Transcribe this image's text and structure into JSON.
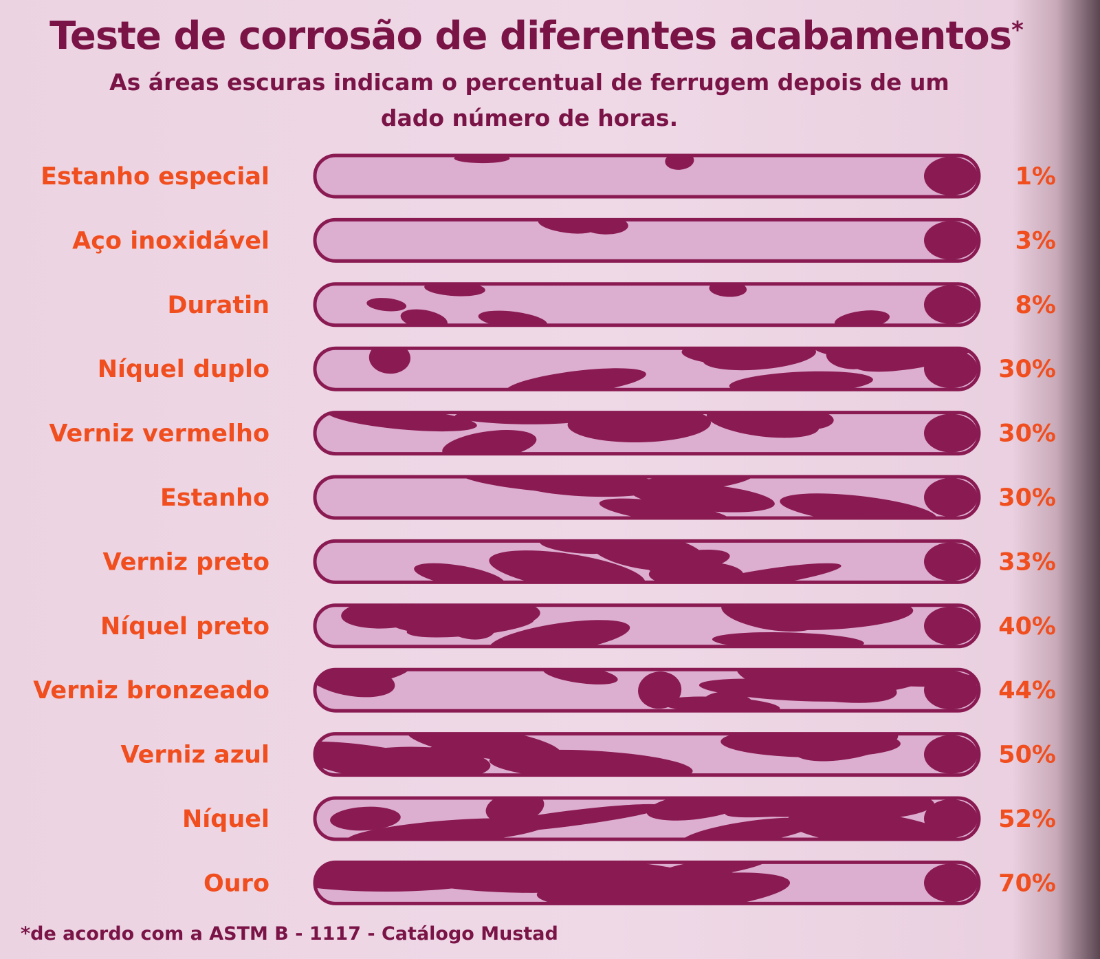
{
  "header": {
    "title": "Teste de corrosão de diferentes acabamentos",
    "title_mark": "*",
    "subtitle": "As áreas escuras indicam o percentual de ferrugem depois de um dado número de horas."
  },
  "footnote": "*de acordo com a ASTM B - 1117 - Catálogo Mustad",
  "colors": {
    "rust": "#8a1a52",
    "clean": "#dcaed0",
    "label": "#f04e1e",
    "title": "#7a1447"
  },
  "chart_data": {
    "type": "bar",
    "title": "Teste de corrosão de diferentes acabamentos",
    "categories": [
      "Estanho especial",
      "Aço inoxidável",
      "Duratin",
      "Níquel duplo",
      "Verniz vermelho",
      "Estanho",
      "Verniz preto",
      "Níquel preto",
      "Verniz bronzeado",
      "Verniz azul",
      "Níquel",
      "Ouro"
    ],
    "values": [
      1,
      3,
      8,
      30,
      30,
      30,
      33,
      40,
      44,
      50,
      52,
      70
    ],
    "value_labels": [
      "1%",
      "3%",
      "8%",
      "30%",
      "30%",
      "30%",
      "33%",
      "40%",
      "44%",
      "50%",
      "52%",
      "70%"
    ],
    "unit": "%",
    "orientation": "horizontal",
    "ylim": [
      0,
      100
    ],
    "grid": false,
    "legend": "none"
  }
}
